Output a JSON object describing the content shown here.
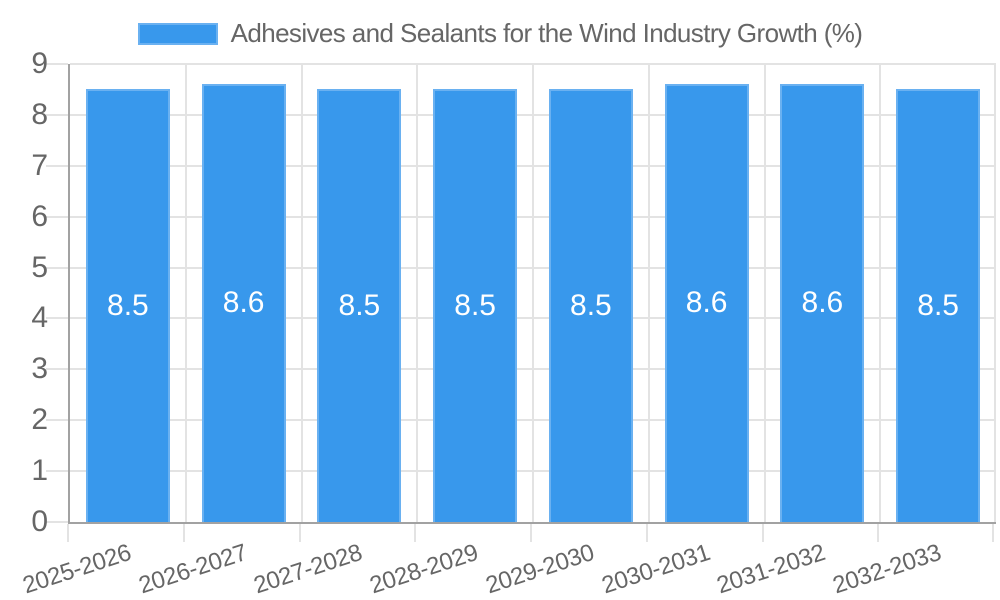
{
  "legend": {
    "label": "Adhesives and Sealants for the Wind Industry Growth (%)"
  },
  "colors": {
    "bar": "#3898ec",
    "bar_border": "#6ab1f1",
    "grid": "#e3e3e3",
    "axis": "#a2a2a2",
    "text": "#666666",
    "value_label": "#ffffff",
    "background": "#ffffff"
  },
  "chart_data": {
    "type": "bar",
    "title": "Adhesives and Sealants for the Wind Industry Growth (%)",
    "categories": [
      "2025-2026",
      "2026-2027",
      "2027-2028",
      "2028-2029",
      "2029-2030",
      "2030-2031",
      "2031-2032",
      "2032-2033"
    ],
    "values": [
      8.5,
      8.6,
      8.5,
      8.5,
      8.5,
      8.6,
      8.6,
      8.5
    ],
    "value_labels_shown": [
      "8.5",
      "8.6",
      "8.5",
      "8.5",
      "8.5",
      "8.6",
      "8.6",
      "8.5"
    ],
    "xlabel": "",
    "ylabel": "",
    "ylim": [
      0,
      9
    ],
    "yticks": [
      0,
      1,
      2,
      3,
      4,
      5,
      6,
      7,
      8,
      9
    ],
    "grid": true,
    "legend_position": "top",
    "value_label_position": "center",
    "x_tick_rotation_deg": -18
  }
}
